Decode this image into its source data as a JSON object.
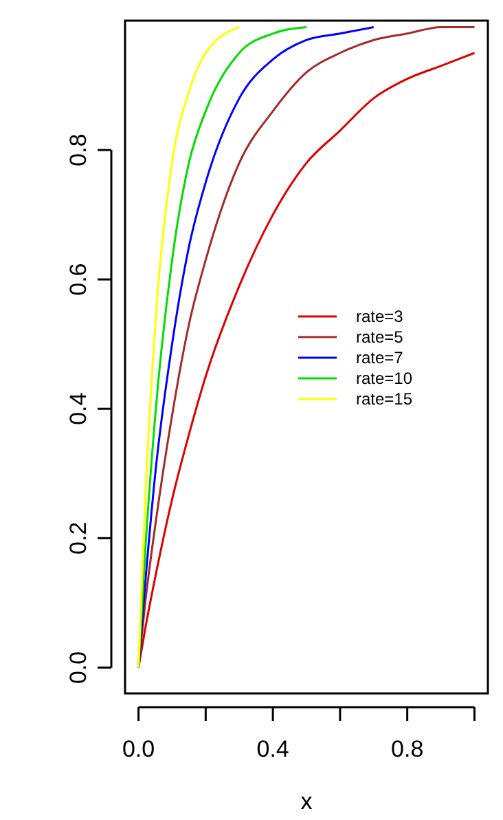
{
  "chart_data": {
    "type": "line",
    "xlabel": "x",
    "x": [
      0,
      0.02,
      0.05,
      0.1,
      0.15,
      0.2,
      0.3,
      0.4,
      0.5,
      0.6,
      0.7,
      0.8,
      0.9,
      1.0
    ],
    "series": [
      {
        "name": "rate=3",
        "color": "#dd0000",
        "values": [
          0,
          0.06,
          0.14,
          0.26,
          0.36,
          0.45,
          0.59,
          0.7,
          0.78,
          0.83,
          0.88,
          0.91,
          0.93,
          0.95
        ]
      },
      {
        "name": "rate=5",
        "color": "#a52a2a",
        "values": [
          0,
          0.1,
          0.22,
          0.39,
          0.53,
          0.63,
          0.78,
          0.86,
          0.92,
          0.95,
          0.97,
          0.98,
          0.99,
          0.99
        ]
      },
      {
        "name": "rate=7",
        "color": "#0000ff",
        "values": [
          0,
          0.13,
          0.3,
          0.5,
          0.65,
          0.75,
          0.88,
          0.94,
          0.97,
          0.98,
          0.99,
          null,
          null,
          null
        ]
      },
      {
        "name": "rate=10",
        "color": "#00dd00",
        "values": [
          0,
          0.18,
          0.39,
          0.63,
          0.78,
          0.86,
          0.95,
          0.98,
          0.99,
          null,
          null,
          null,
          null,
          null
        ]
      },
      {
        "name": "rate=15",
        "color": "#ffff00",
        "values": [
          0,
          0.26,
          0.53,
          0.78,
          0.89,
          0.95,
          0.99,
          null,
          null,
          null,
          null,
          null,
          null,
          null
        ]
      }
    ],
    "xlim": [
      -0.04,
      1.04
    ],
    "ylim": [
      -0.04,
      1.0
    ],
    "xticks": [
      {
        "value": 0,
        "label": "0.0"
      },
      {
        "value": 0.2,
        "label": null
      },
      {
        "value": 0.4,
        "label": "0.4"
      },
      {
        "value": 0.6,
        "label": null
      },
      {
        "value": 0.8,
        "label": "0.8"
      },
      {
        "value": 1.0,
        "label": null
      }
    ],
    "yticks": [
      {
        "value": 0,
        "label": "0.0"
      },
      {
        "value": 0.2,
        "label": "0.2"
      },
      {
        "value": 0.4,
        "label": "0.4"
      },
      {
        "value": 0.6,
        "label": "0.6"
      },
      {
        "value": 0.8,
        "label": "0.8"
      }
    ],
    "legend": "right",
    "line_style": "solid",
    "marker": "none",
    "grid": false
  }
}
